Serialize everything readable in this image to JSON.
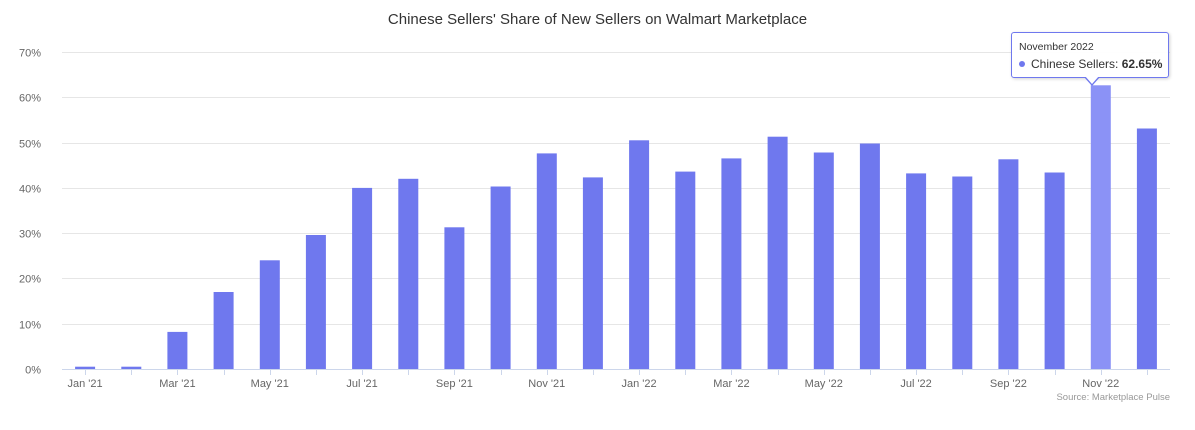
{
  "chart_data": {
    "type": "bar",
    "title": "Chinese Sellers' Share of New Sellers on Walmart Marketplace",
    "source": "Source: Marketplace Pulse",
    "categories": [
      "Jan '21",
      "Feb '21",
      "Mar '21",
      "Apr '21",
      "May '21",
      "Jun '21",
      "Jul '21",
      "Aug '21",
      "Sep '21",
      "Oct '21",
      "Nov '21",
      "Dec '21",
      "Jan '22",
      "Feb '22",
      "Mar '22",
      "Apr '22",
      "May '22",
      "Jun '22",
      "Jul '22",
      "Aug '22",
      "Sep '22",
      "Oct '22",
      "Nov '22",
      "Dec '22"
    ],
    "x_tick_labels": [
      "Jan '21",
      "Mar '21",
      "May '21",
      "Jul '21",
      "Sep '21",
      "Nov '21",
      "Jan '22",
      "Mar '22",
      "May '22",
      "Jul '22",
      "Sep '22",
      "Nov '22"
    ],
    "series": [
      {
        "name": "Chinese Sellers",
        "color": "#6f78ee",
        "values": [
          0.5,
          0.5,
          8.2,
          17.0,
          24.0,
          29.6,
          40.0,
          42.0,
          31.3,
          40.3,
          47.6,
          42.3,
          50.5,
          43.6,
          46.5,
          51.3,
          47.8,
          49.8,
          43.2,
          42.5,
          46.3,
          43.4,
          62.65,
          53.1
        ]
      }
    ],
    "ylim": [
      0,
      70
    ],
    "y_ticks": [
      0,
      10,
      20,
      30,
      40,
      50,
      60,
      70
    ],
    "y_tick_format": "%",
    "grid": true,
    "highlight_index": 22,
    "highlight_color": "#8b92f6"
  },
  "tooltip": {
    "date": "November 2022",
    "series_label": "Chinese Sellers:",
    "value": "62.65%"
  }
}
